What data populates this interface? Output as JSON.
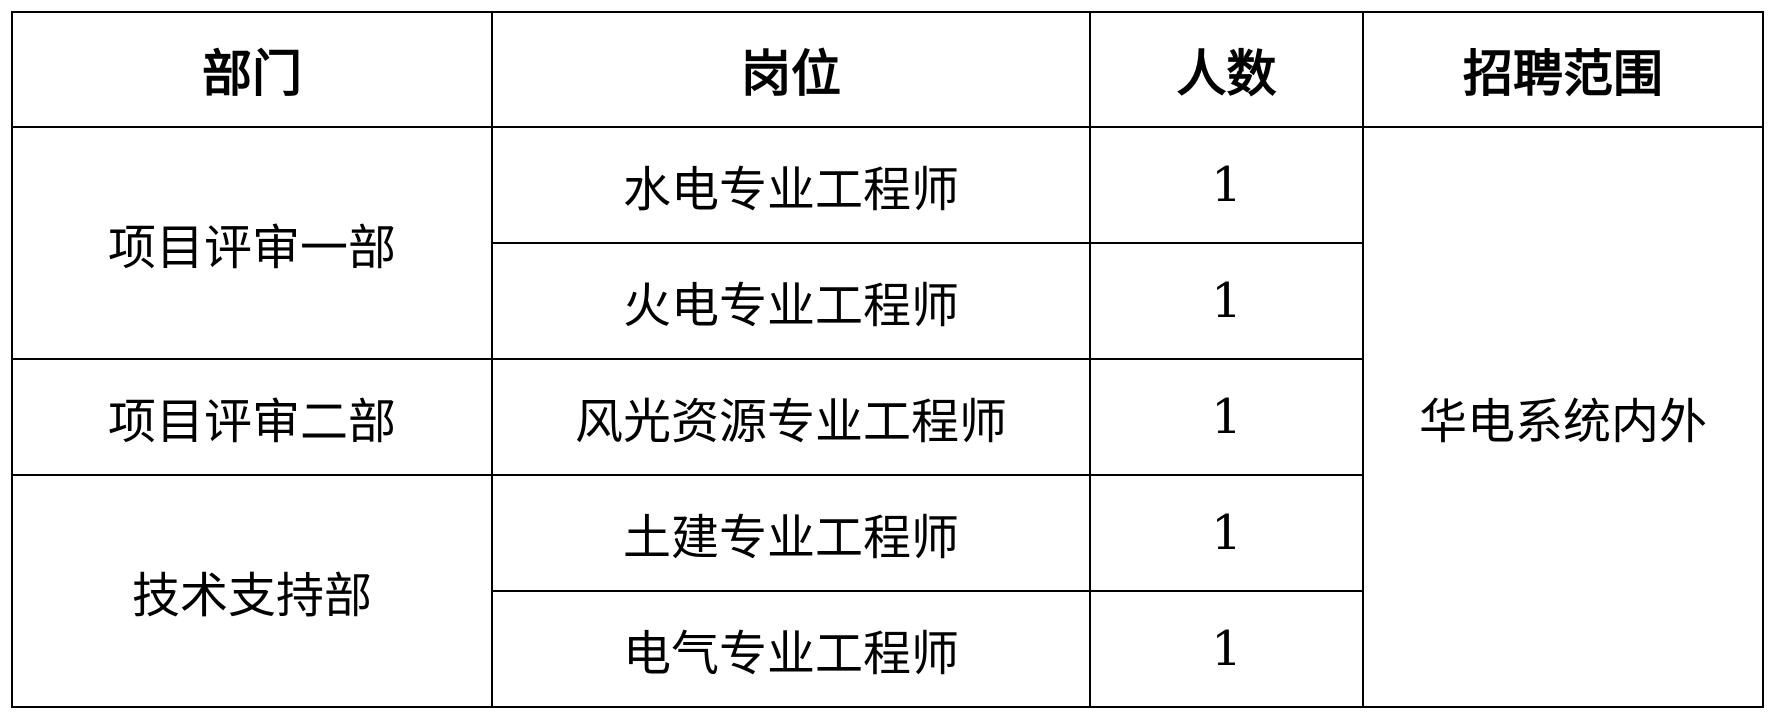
{
  "headers": [
    "部门",
    "岗位",
    "人数",
    "招聘范围"
  ],
  "departments": [
    "项目评审一部",
    "项目评审二部",
    "技术支持部"
  ],
  "rows": [
    {
      "position": "水电专业工程师",
      "count": "1"
    },
    {
      "position": "火电专业工程师",
      "count": "1"
    },
    {
      "position": "风光资源专业工程师",
      "count": "1"
    },
    {
      "position": "土建专业工程师",
      "count": "1"
    },
    {
      "position": "电气专业工程师",
      "count": "1"
    }
  ],
  "scope": "华电系统内外"
}
